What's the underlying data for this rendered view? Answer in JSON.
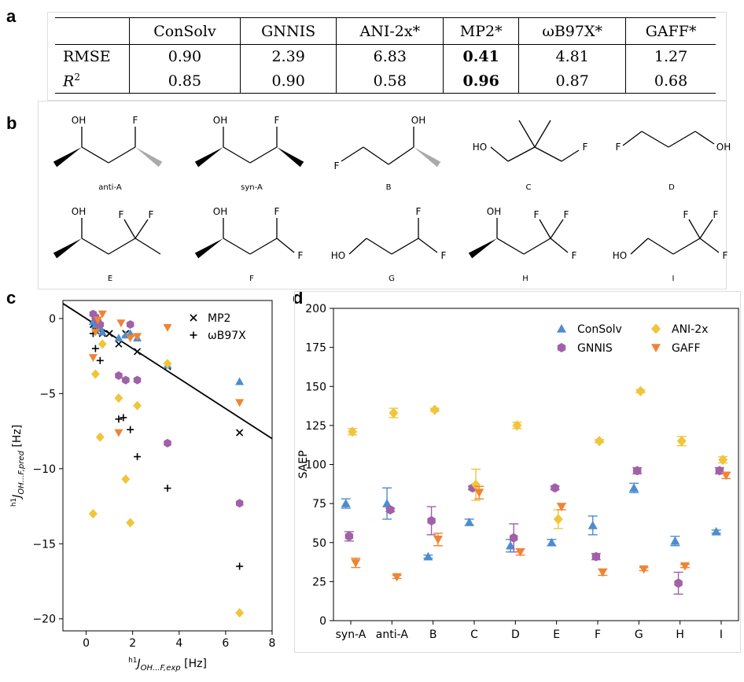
{
  "panels": {
    "a": "a",
    "b": "b",
    "c": "c",
    "d": "d"
  },
  "table": {
    "header": [
      "",
      "ConSolv",
      "GNNIS",
      "ANI-2x*",
      "MP2*",
      "ωB97X*",
      "GAFF*"
    ],
    "rows": [
      {
        "label": "RMSE",
        "values": [
          "0.90",
          "2.39",
          "6.83",
          "0.41",
          "4.81",
          "1.27"
        ]
      },
      {
        "label": "R2",
        "values": [
          "0.85",
          "0.90",
          "0.58",
          "0.96",
          "0.87",
          "0.68"
        ]
      }
    ],
    "bold_column": 4
  },
  "molecules": [
    {
      "label": "anti-A",
      "kind": "A",
      "wedges": [
        "bold",
        "hash"
      ]
    },
    {
      "label": "syn-A",
      "kind": "A",
      "wedges": [
        "bold",
        "bold"
      ]
    },
    {
      "label": "B",
      "kind": "B"
    },
    {
      "label": "C",
      "kind": "C"
    },
    {
      "label": "D",
      "kind": "D"
    },
    {
      "label": "E",
      "kind": "E"
    },
    {
      "label": "F",
      "kind": "F"
    },
    {
      "label": "G",
      "kind": "G"
    },
    {
      "label": "H",
      "kind": "H"
    },
    {
      "label": "I",
      "kind": "I"
    }
  ],
  "atoms": {
    "oh": "OH",
    "ho": "HO",
    "f": "F"
  },
  "chart_data": [
    {
      "type": "scatter",
      "xlabel": "h1J OH...F,exp [Hz]",
      "ylabel": "h1J OH...F,pred [Hz]",
      "xlim": [
        -1,
        8
      ],
      "ylim": [
        -20.8,
        1.2
      ],
      "xticks": [
        0,
        2,
        4,
        6,
        8
      ],
      "yticks": [
        0,
        -5,
        -10,
        -15,
        -20
      ],
      "legend": [
        "MP2",
        "ωB97X"
      ],
      "legend_position": "top-right",
      "reference_line": [
        [
          -1,
          1.0
        ],
        [
          8,
          -8.0
        ]
      ],
      "colors": {
        "ConSolv": "#4e8ccf",
        "GNNIS": "#a061a8",
        "ANI-2x": "#f0c53c",
        "GAFF": "#ef8433",
        "MP2": "#000000",
        "ωB97X": "#000000"
      },
      "series": [
        {
          "name": "MP2",
          "marker": "x",
          "points": [
            [
              0.3,
              -0.4
            ],
            [
              0.4,
              -0.8
            ],
            [
              0.5,
              -0.5
            ],
            [
              0.6,
              -0.7
            ],
            [
              0.7,
              -1.0
            ],
            [
              1.0,
              -1.0
            ],
            [
              1.4,
              -1.7
            ],
            [
              1.7,
              -1.0
            ],
            [
              2.2,
              -2.2
            ],
            [
              3.5,
              -3.2
            ],
            [
              6.6,
              -7.6
            ]
          ]
        },
        {
          "name": "ωB97X",
          "marker": "+",
          "points": [
            [
              0.3,
              -1.0
            ],
            [
              0.4,
              -2.0
            ],
            [
              0.6,
              -2.8
            ],
            [
              1.4,
              -6.7
            ],
            [
              1.6,
              -6.6
            ],
            [
              1.9,
              -7.4
            ],
            [
              2.2,
              -9.2
            ],
            [
              3.5,
              -11.3
            ],
            [
              6.6,
              -16.5
            ]
          ]
        },
        {
          "marker": "triangle-up",
          "color": "#4e8ccf",
          "points": [
            [
              0.3,
              -0.2
            ],
            [
              0.4,
              -0.4
            ],
            [
              0.5,
              -0.3
            ],
            [
              0.6,
              -0.6
            ],
            [
              0.7,
              -0.9
            ],
            [
              1.4,
              -1.3
            ],
            [
              1.7,
              -1.1
            ],
            [
              1.9,
              -1.0
            ],
            [
              2.2,
              -1.3
            ],
            [
              3.5,
              -3.1
            ],
            [
              6.6,
              -4.2
            ]
          ]
        },
        {
          "marker": "hexagon",
          "color": "#a061a8",
          "points": [
            [
              0.3,
              0.3
            ],
            [
              0.4,
              0.1
            ],
            [
              0.5,
              -0.2
            ],
            [
              0.6,
              -0.4
            ],
            [
              1.4,
              -3.8
            ],
            [
              1.7,
              -4.1
            ],
            [
              1.9,
              -0.4
            ],
            [
              2.2,
              -4.1
            ],
            [
              3.5,
              -8.3
            ],
            [
              6.6,
              -12.3
            ]
          ]
        },
        {
          "marker": "diamond",
          "color": "#f0c53c",
          "points": [
            [
              0.3,
              -13.0
            ],
            [
              0.4,
              -3.7
            ],
            [
              0.6,
              -7.9
            ],
            [
              0.7,
              -1.7
            ],
            [
              1.4,
              -5.3
            ],
            [
              1.7,
              -10.7
            ],
            [
              1.9,
              -13.6
            ],
            [
              2.2,
              -5.8
            ],
            [
              3.5,
              -3.0
            ],
            [
              6.6,
              -19.6
            ]
          ]
        },
        {
          "marker": "triangle-down",
          "color": "#ef8433",
          "points": [
            [
              0.3,
              -2.6
            ],
            [
              0.4,
              -0.9
            ],
            [
              0.5,
              -0.1
            ],
            [
              0.7,
              0.3
            ],
            [
              1.4,
              -7.6
            ],
            [
              1.5,
              -0.3
            ],
            [
              1.9,
              -1.3
            ],
            [
              2.2,
              -1.2
            ],
            [
              3.5,
              -0.6
            ],
            [
              6.6,
              -5.6
            ]
          ]
        }
      ]
    },
    {
      "type": "scatter",
      "ylabel": "SAEP",
      "categories": [
        "syn-A",
        "anti-A",
        "B",
        "C",
        "D",
        "E",
        "F",
        "G",
        "H",
        "I"
      ],
      "ylim": [
        0,
        200
      ],
      "yticks": [
        0,
        25,
        50,
        75,
        100,
        125,
        150,
        175,
        200
      ],
      "legend_position": "top-right",
      "series": [
        {
          "name": "ConSolv",
          "marker": "triangle-up",
          "color": "#4e8ccf",
          "offset": -0.12,
          "values": [
            75,
            75,
            41,
            63,
            48,
            50,
            61,
            85,
            51,
            57
          ],
          "errors": [
            3,
            10,
            1,
            2,
            4,
            2,
            6,
            3,
            3,
            1
          ]
        },
        {
          "name": "GNNIS",
          "marker": "hexagon",
          "color": "#a061a8",
          "offset": -0.04,
          "values": [
            54,
            71,
            64,
            85,
            53,
            85,
            41,
            96,
            24,
            96
          ],
          "errors": [
            3,
            1,
            9,
            1,
            9,
            1,
            2,
            2,
            7,
            2
          ]
        },
        {
          "name": "ANI-2x",
          "marker": "diamond",
          "color": "#f0c53c",
          "offset": 0.04,
          "values": [
            121,
            133,
            135,
            87,
            125,
            65,
            115,
            147,
            115,
            103
          ],
          "errors": [
            2,
            3,
            1,
            10,
            2,
            6,
            1,
            1,
            3,
            2
          ]
        },
        {
          "name": "GAFF",
          "marker": "triangle-down",
          "color": "#ef8433",
          "offset": 0.12,
          "values": [
            37,
            28,
            52,
            82,
            44,
            73,
            31,
            33,
            35,
            93
          ],
          "errors": [
            3,
            1,
            4,
            4,
            2,
            2,
            2,
            1,
            1,
            2
          ]
        }
      ]
    }
  ]
}
